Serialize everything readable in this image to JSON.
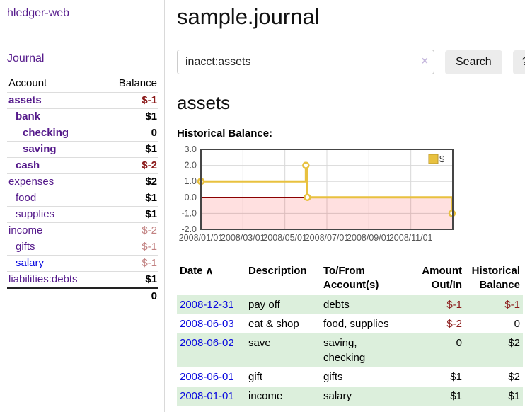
{
  "sidebar": {
    "app_title": "hledger-web",
    "journal_link": "Journal",
    "columns": {
      "account": "Account",
      "balance": "Balance"
    },
    "accounts": [
      {
        "name": "assets",
        "indent": 0,
        "bold": true,
        "name_color": "purple",
        "balance": "$-1",
        "balance_style": "neg-strong"
      },
      {
        "name": "bank",
        "indent": 1,
        "bold": true,
        "name_color": "purple",
        "balance": "$1",
        "balance_style": "normal"
      },
      {
        "name": "checking",
        "indent": 2,
        "bold": true,
        "name_color": "purple",
        "balance": "0",
        "balance_style": "normal"
      },
      {
        "name": "saving",
        "indent": 2,
        "bold": true,
        "name_color": "purple",
        "balance": "$1",
        "balance_style": "normal"
      },
      {
        "name": "cash",
        "indent": 1,
        "bold": true,
        "name_color": "purple",
        "balance": "$-2",
        "balance_style": "neg-strong"
      },
      {
        "name": "expenses",
        "indent": 0,
        "bold": false,
        "name_color": "purple",
        "balance": "$2",
        "balance_style": "normal"
      },
      {
        "name": "food",
        "indent": 1,
        "bold": false,
        "name_color": "purple",
        "balance": "$1",
        "balance_style": "normal"
      },
      {
        "name": "supplies",
        "indent": 1,
        "bold": false,
        "name_color": "purple",
        "balance": "$1",
        "balance_style": "normal"
      },
      {
        "name": "income",
        "indent": 0,
        "bold": false,
        "name_color": "purple",
        "balance": "$-2",
        "balance_style": "neg-soft"
      },
      {
        "name": "gifts",
        "indent": 1,
        "bold": false,
        "name_color": "purple",
        "balance": "$-1",
        "balance_style": "neg-soft"
      },
      {
        "name": "salary",
        "indent": 1,
        "bold": false,
        "name_color": "blue",
        "balance": "$-1",
        "balance_style": "neg-soft"
      },
      {
        "name": "liabilities:debts",
        "indent": 0,
        "bold": false,
        "name_color": "purple",
        "balance": "$1",
        "balance_style": "normal"
      }
    ],
    "total": "0"
  },
  "header": {
    "title": "sample.journal"
  },
  "search": {
    "value": "inacct:assets",
    "clear_icon": "×",
    "button_label": "Search",
    "help_label": "?"
  },
  "account_page": {
    "heading": "assets",
    "chart_title": "Historical Balance:"
  },
  "chart_data": {
    "type": "line",
    "title": "Historical Balance:",
    "step": true,
    "xlim_months": [
      0,
      12
    ],
    "ylim": [
      -2,
      3
    ],
    "y_ticks": [
      "3.0",
      "2.0",
      "1.0",
      "0.0",
      "-1.0",
      "-2.0"
    ],
    "x_ticks": [
      {
        "label": "2008/01/01",
        "month": 0
      },
      {
        "label": "2008/03/01",
        "month": 2
      },
      {
        "label": "2008/05/01",
        "month": 4
      },
      {
        "label": "2008/07/01",
        "month": 6
      },
      {
        "label": "2008/09/01",
        "month": 8
      },
      {
        "label": "2008/11/01",
        "month": 10
      }
    ],
    "series": [
      {
        "name": "$",
        "color": "#e8c13f",
        "points": [
          {
            "date": "2008-01-01",
            "month": 0,
            "value": 1
          },
          {
            "date": "2008-06-01",
            "month": 5,
            "value": 2
          },
          {
            "date": "2008-06-03",
            "month": 5.07,
            "value": 0
          },
          {
            "date": "2008-12-31",
            "month": 12,
            "value": -1
          }
        ]
      }
    ],
    "legend": {
      "position": "top-right",
      "label": "$"
    },
    "negative_region_color": "rgba(255,0,0,0.12)",
    "zero_line_color": "#8b0000",
    "grid_color": "#d8d8d8",
    "border_color": "#454545"
  },
  "register": {
    "headers": {
      "date": "Date",
      "sort_arrow": "∧",
      "description": "Description",
      "accounts": "To/From\nAccount(s)",
      "amount": "Amount\nOut/In",
      "balance": "Historical\nBalance"
    },
    "rows": [
      {
        "date": "2008-12-31",
        "description": "pay off",
        "accounts": "debts",
        "amount": "$-1",
        "amount_neg": true,
        "balance": "$-1",
        "balance_neg": true
      },
      {
        "date": "2008-06-03",
        "description": "eat & shop",
        "accounts": "food, supplies",
        "amount": "$-2",
        "amount_neg": true,
        "balance": "0",
        "balance_neg": false
      },
      {
        "date": "2008-06-02",
        "description": "save",
        "accounts": "saving,\nchecking",
        "amount": "0",
        "amount_neg": false,
        "balance": "$2",
        "balance_neg": false
      },
      {
        "date": "2008-06-01",
        "description": "gift",
        "accounts": "gifts",
        "amount": "$1",
        "amount_neg": false,
        "balance": "$2",
        "balance_neg": false
      },
      {
        "date": "2008-01-01",
        "description": "income",
        "accounts": "salary",
        "amount": "$1",
        "amount_neg": false,
        "balance": "$1",
        "balance_neg": false
      }
    ]
  }
}
